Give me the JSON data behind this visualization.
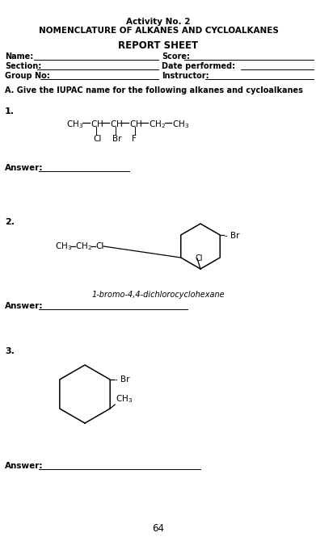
{
  "title1": "Activity No. 2",
  "title2": "NOMENCLATURE OF ALKANES AND CYCLOALKANES",
  "title3": "REPORT SHEET",
  "bg_color": "#ffffff",
  "label_name": "Name:",
  "label_section": "Section:",
  "label_group": "Group No:",
  "label_score": "Score:",
  "label_date": "Date performed:",
  "label_instructor": "Instructor:",
  "question_header": "A. Give the IUPAC name for the following alkanes and cycloalkanes​",
  "answer_label": "Answer:",
  "page_number": "64",
  "q1_label": "1.",
  "q2_label": "2.",
  "q3_label": "3.",
  "caption2": "1-bromo-4,4-dichlorocyclohexane"
}
